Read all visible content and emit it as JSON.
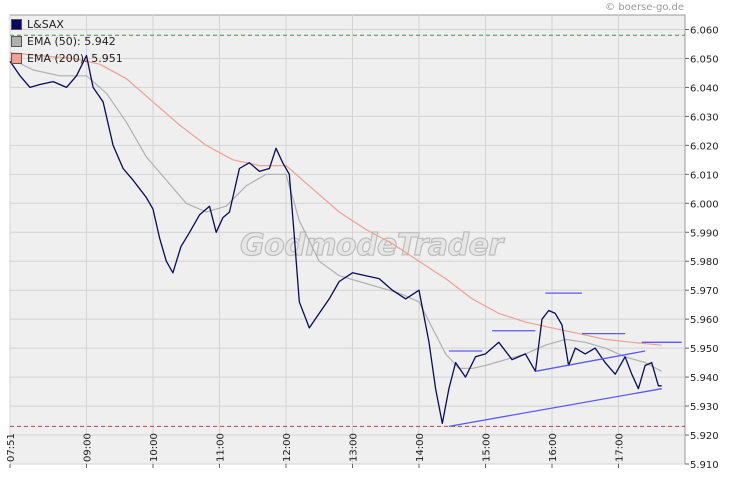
{
  "copyright": "© boerse-go.de",
  "watermark": "GodmodeTrader",
  "legend": [
    {
      "label": "L&SAX",
      "color": "#0a0a5a"
    },
    {
      "label": "EMA (50): 5.942",
      "color": "#b0b0b0"
    },
    {
      "label": "EMA (200): 5.951",
      "color": "#f0a090"
    }
  ],
  "chart_data": {
    "type": "line",
    "title": "",
    "xlabel": "",
    "ylabel": "",
    "ylim": [
      5.91,
      6.065
    ],
    "yticks": [
      "6.060",
      "6.050",
      "6.040",
      "6.030",
      "6.020",
      "6.010",
      "6.000",
      "5.990",
      "5.980",
      "5.970",
      "5.960",
      "5.950",
      "5.940",
      "5.930",
      "5.920",
      "5.910"
    ],
    "xlim": [
      7.85,
      18.0
    ],
    "xticks": [
      {
        "label": "07:51",
        "x": 7.85
      },
      {
        "label": "09:00",
        "x": 9.0
      },
      {
        "label": "10:00",
        "x": 10.0
      },
      {
        "label": "11:00",
        "x": 11.0
      },
      {
        "label": "12:00",
        "x": 12.0
      },
      {
        "label": "13:00",
        "x": 13.0
      },
      {
        "label": "14:00",
        "x": 14.0
      },
      {
        "label": "15:00",
        "x": 15.0
      },
      {
        "label": "16:00",
        "x": 16.0
      },
      {
        "label": "17:00",
        "x": 17.0
      }
    ],
    "grid": true,
    "series": [
      {
        "name": "L&SAX",
        "color": "#0a0a5a",
        "x": [
          7.85,
          8.0,
          8.15,
          8.3,
          8.5,
          8.7,
          8.85,
          9.0,
          9.1,
          9.25,
          9.4,
          9.55,
          9.7,
          9.8,
          9.9,
          10.0,
          10.1,
          10.2,
          10.3,
          10.42,
          10.55,
          10.7,
          10.85,
          10.95,
          11.05,
          11.15,
          11.3,
          11.45,
          11.6,
          11.75,
          11.85,
          11.95,
          12.05,
          12.12,
          12.2,
          12.35,
          12.5,
          12.65,
          12.8,
          13.0,
          13.2,
          13.4,
          13.6,
          13.8,
          14.0,
          14.15,
          14.25,
          14.35,
          14.45,
          14.55,
          14.7,
          14.85,
          15.0,
          15.2,
          15.4,
          15.6,
          15.75,
          15.85,
          15.95,
          16.05,
          16.15,
          16.25,
          16.35,
          16.5,
          16.65,
          16.8,
          16.95,
          17.1,
          17.2,
          17.3,
          17.4,
          17.5,
          17.6,
          17.65
        ],
        "y": [
          6.049,
          6.044,
          6.04,
          6.041,
          6.042,
          6.04,
          6.044,
          6.051,
          6.04,
          6.035,
          6.02,
          6.012,
          6.008,
          6.005,
          6.002,
          5.998,
          5.988,
          5.98,
          5.976,
          5.985,
          5.99,
          5.996,
          5.999,
          5.99,
          5.995,
          5.997,
          6.012,
          6.014,
          6.011,
          6.012,
          6.019,
          6.014,
          6.01,
          5.99,
          5.966,
          5.957,
          5.962,
          5.967,
          5.973,
          5.976,
          5.975,
          5.974,
          5.97,
          5.967,
          5.97,
          5.952,
          5.936,
          5.924,
          5.936,
          5.945,
          5.94,
          5.947,
          5.948,
          5.952,
          5.946,
          5.948,
          5.942,
          5.96,
          5.963,
          5.962,
          5.958,
          5.944,
          5.95,
          5.948,
          5.95,
          5.945,
          5.941,
          5.947,
          5.941,
          5.936,
          5.944,
          5.945,
          5.937,
          5.937
        ]
      },
      {
        "name": "EMA (50): 5.942",
        "color": "#b0b0b0",
        "x": [
          7.85,
          8.2,
          8.6,
          9.0,
          9.3,
          9.6,
          9.9,
          10.2,
          10.5,
          10.8,
          11.1,
          11.4,
          11.7,
          12.0,
          12.2,
          12.5,
          12.8,
          13.1,
          13.4,
          13.7,
          14.0,
          14.2,
          14.4,
          14.6,
          14.8,
          15.0,
          15.3,
          15.6,
          15.9,
          16.2,
          16.5,
          16.8,
          17.1,
          17.4,
          17.65
        ],
        "y": [
          6.05,
          6.046,
          6.044,
          6.044,
          6.038,
          6.028,
          6.016,
          6.008,
          6.0,
          5.997,
          5.999,
          6.006,
          6.01,
          6.01,
          5.994,
          5.98,
          5.975,
          5.973,
          5.971,
          5.969,
          5.966,
          5.957,
          5.948,
          5.943,
          5.943,
          5.944,
          5.946,
          5.948,
          5.951,
          5.953,
          5.952,
          5.95,
          5.947,
          5.945,
          5.942
        ]
      },
      {
        "name": "EMA (200): 5.951",
        "color": "#f0a090",
        "x": [
          7.85,
          8.3,
          8.8,
          9.2,
          9.6,
          10.0,
          10.4,
          10.8,
          11.2,
          11.6,
          12.0,
          12.4,
          12.8,
          13.2,
          13.6,
          14.0,
          14.4,
          14.8,
          15.2,
          15.6,
          16.0,
          16.4,
          16.8,
          17.2,
          17.65
        ],
        "y": [
          6.052,
          6.051,
          6.05,
          6.048,
          6.043,
          6.035,
          6.027,
          6.02,
          6.015,
          6.013,
          6.013,
          6.005,
          5.997,
          5.991,
          5.986,
          5.98,
          5.974,
          5.967,
          5.962,
          5.959,
          5.957,
          5.955,
          5.953,
          5.952,
          5.951
        ]
      }
    ],
    "trendlines": [
      {
        "color": "#5a5af0",
        "x": [
          14.45,
          17.65
        ],
        "y": [
          5.923,
          5.936
        ]
      },
      {
        "color": "#5a5af0",
        "x": [
          15.75,
          17.4
        ],
        "y": [
          5.942,
          5.949
        ]
      },
      {
        "color": "#5a5af0",
        "x": [
          14.45,
          14.95
        ],
        "y": [
          5.949,
          5.949
        ]
      },
      {
        "color": "#5a5af0",
        "x": [
          15.1,
          15.75
        ],
        "y": [
          5.956,
          5.956
        ]
      },
      {
        "color": "#5a5af0",
        "x": [
          15.9,
          16.45
        ],
        "y": [
          5.969,
          5.969
        ]
      },
      {
        "color": "#5a5af0",
        "x": [
          16.45,
          17.1
        ],
        "y": [
          5.955,
          5.955
        ]
      },
      {
        "color": "#5a5af0",
        "x": [
          17.35,
          17.95
        ],
        "y": [
          5.952,
          5.952
        ]
      }
    ],
    "hlines": [
      {
        "color": "#3a9a3a",
        "y": 6.058,
        "style": "dashed"
      },
      {
        "color": "#c04040",
        "y": 5.923,
        "style": "dashed"
      }
    ]
  }
}
